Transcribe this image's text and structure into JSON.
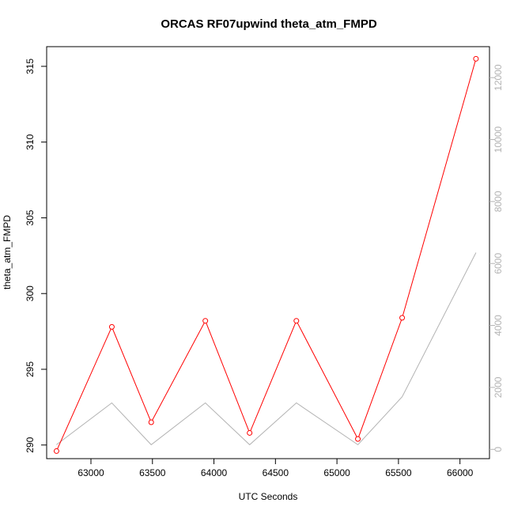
{
  "chart_data": {
    "type": "line",
    "title": "ORCAS RF07upwind theta_atm_FMPD",
    "xlabel": "UTC Seconds",
    "ylabel": "theta_atm_FMPD",
    "xlim": [
      62640,
      66240
    ],
    "ylim": [
      289.1,
      316.3
    ],
    "y2lim": [
      -300,
      13000
    ],
    "x_ticks": [
      63000,
      63500,
      64000,
      64500,
      65000,
      65500,
      66000
    ],
    "y_ticks": [
      290,
      295,
      300,
      305,
      310,
      315
    ],
    "y2_ticks": [
      0,
      2000,
      4000,
      6000,
      8000,
      10000,
      12000
    ],
    "series": [
      {
        "color": "#ff0000",
        "axis": "left",
        "markers": true,
        "x": [
          62720,
          63170,
          63490,
          63930,
          64290,
          64670,
          65170,
          65530,
          66130
        ],
        "y": [
          289.6,
          297.8,
          291.5,
          298.2,
          290.8,
          298.2,
          290.4,
          298.4,
          315.5
        ]
      },
      {
        "color": "#b3b3b3",
        "axis": "right",
        "markers": false,
        "x": [
          62720,
          63170,
          63490,
          63930,
          64290,
          64670,
          65170,
          65530,
          66130
        ],
        "y": [
          150,
          1500,
          150,
          1500,
          150,
          1500,
          150,
          1700,
          6350
        ]
      }
    ]
  }
}
